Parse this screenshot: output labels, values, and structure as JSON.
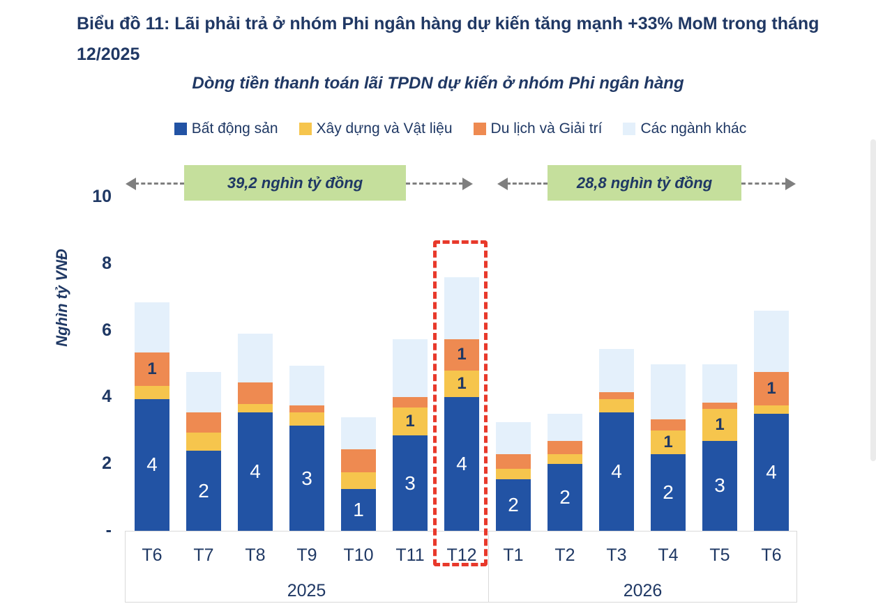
{
  "header": {
    "title": "Biểu đồ 11: Lãi phải trả ở nhóm Phi ngân hàng dự kiến tăng mạnh +33% MoM trong tháng 12/2025",
    "subtitle": "Dòng tiền thanh toán lãi TPDN dự kiến ở nhóm Phi ngân hàng"
  },
  "annotations": {
    "period1_total": "39,2 nghìn tỷ đồng",
    "period2_total": "28,8 nghìn tỷ đồng"
  },
  "colors": {
    "navy_text": "#1f3864",
    "title_navy": "#203864",
    "annotation_green": "#c5df9c",
    "highlight_red": "#e8392b",
    "arrow_gray": "#7f7f7f",
    "axis_gray": "#d9d9d9"
  },
  "chart_data": {
    "type": "bar",
    "stacked": true,
    "title": "Dòng tiền thanh toán lãi TPDN dự kiến ở nhóm Phi ngân hàng",
    "ylabel": "Nghìn tỷ VNĐ",
    "ylim": [
      0,
      10
    ],
    "grid": false,
    "legend_position": "top",
    "yticks": [
      {
        "label": "10",
        "value": 10
      },
      {
        "label": "8",
        "value": 8
      },
      {
        "label": "6",
        "value": 6
      },
      {
        "label": "4",
        "value": 4
      },
      {
        "label": "2",
        "value": 2
      },
      {
        "label": "-",
        "value": 0
      }
    ],
    "categories": [
      "T6",
      "T7",
      "T8",
      "T9",
      "T10",
      "T11",
      "T12",
      "T1",
      "T2",
      "T3",
      "T4",
      "T5",
      "T6"
    ],
    "year_groups": [
      {
        "label": "2025",
        "span": 7
      },
      {
        "label": "2026",
        "span": 6
      }
    ],
    "highlight_category_index": 6,
    "series": [
      {
        "name": "Bất động sản",
        "slug": "real-estate",
        "color": "#2253a4",
        "label_style": "light",
        "values": [
          3.95,
          2.4,
          3.55,
          3.15,
          1.25,
          2.85,
          4.0,
          1.55,
          2.0,
          3.55,
          2.3,
          2.7,
          3.5
        ],
        "labels": [
          "4",
          "2",
          "4",
          "3",
          "1",
          "3",
          "4",
          "2",
          "2",
          "4",
          "2",
          "3",
          "4"
        ]
      },
      {
        "name": "Xây dựng và Vật liệu",
        "slug": "construction-materials",
        "color": "#f6c54d",
        "label_style": "dark",
        "values": [
          0.4,
          0.55,
          0.25,
          0.4,
          0.5,
          0.85,
          0.8,
          0.3,
          0.3,
          0.4,
          0.7,
          0.95,
          0.25
        ],
        "labels": [
          "",
          "",
          "",
          "",
          "",
          "1",
          "1",
          "",
          "",
          "",
          "1",
          "1",
          ""
        ]
      },
      {
        "name": "Du lịch và Giải trí",
        "slug": "tourism-entertainment",
        "color": "#ee8a51",
        "label_style": "dark",
        "values": [
          1.0,
          0.6,
          0.65,
          0.2,
          0.7,
          0.3,
          0.95,
          0.45,
          0.4,
          0.2,
          0.35,
          0.2,
          1.0
        ],
        "labels": [
          "1",
          "",
          "",
          "",
          "",
          "",
          "1",
          "",
          "",
          "",
          "",
          "",
          "1"
        ]
      },
      {
        "name": "Các ngành khác",
        "slug": "other-sectors",
        "color": "#e4f0fb",
        "label_style": "dark",
        "values": [
          1.5,
          1.2,
          1.45,
          1.2,
          0.95,
          1.75,
          1.85,
          0.95,
          0.8,
          1.3,
          1.65,
          1.15,
          1.85
        ],
        "labels": [
          "",
          "",
          "",
          "",
          "",
          "",
          "",
          "",
          "",
          "",
          "",
          "",
          ""
        ]
      }
    ],
    "period_totals": [
      "39,2 nghìn tỷ đồng",
      "28,8 nghìn tỷ đồng"
    ]
  }
}
